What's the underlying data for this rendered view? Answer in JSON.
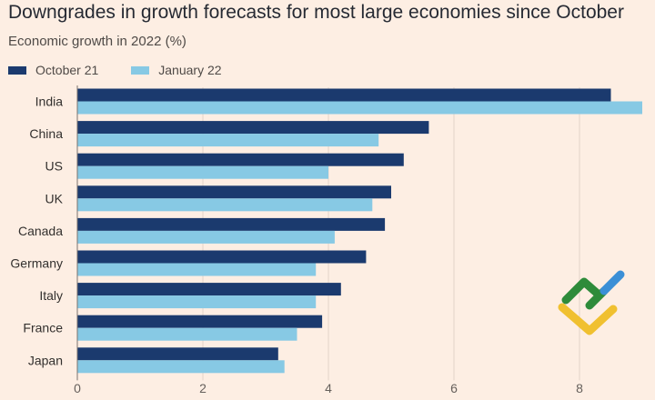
{
  "header": {
    "title": "Downgrades in growth forecasts for most large economies since October",
    "subtitle": "Economic growth in 2022 (%)"
  },
  "colors": {
    "background": "#fdeee3",
    "october": "#1b3a6e",
    "january": "#87c9e4",
    "grid": "#e3d4c9",
    "logo_green": "#2e8b3a",
    "logo_blue": "#3b8fd6",
    "logo_yellow": "#f0c030"
  },
  "chart_data": {
    "type": "bar",
    "orientation": "horizontal",
    "categories": [
      "India",
      "China",
      "US",
      "UK",
      "Canada",
      "Germany",
      "Italy",
      "France",
      "Japan"
    ],
    "series": [
      {
        "name": "October 21",
        "values": [
          8.5,
          5.6,
          5.2,
          5.0,
          4.9,
          4.6,
          4.2,
          3.9,
          3.2
        ]
      },
      {
        "name": "January 22",
        "values": [
          9.0,
          4.8,
          4.0,
          4.7,
          4.1,
          3.8,
          3.8,
          3.5,
          3.3
        ]
      }
    ],
    "title": "Downgrades in growth forecasts for most large economies since October",
    "subtitle": "Economic growth in 2022 (%)",
    "xlim": [
      0,
      9
    ],
    "xticks": [
      0,
      2,
      4,
      6,
      8
    ],
    "grid": true,
    "legend_position": "top-left"
  }
}
